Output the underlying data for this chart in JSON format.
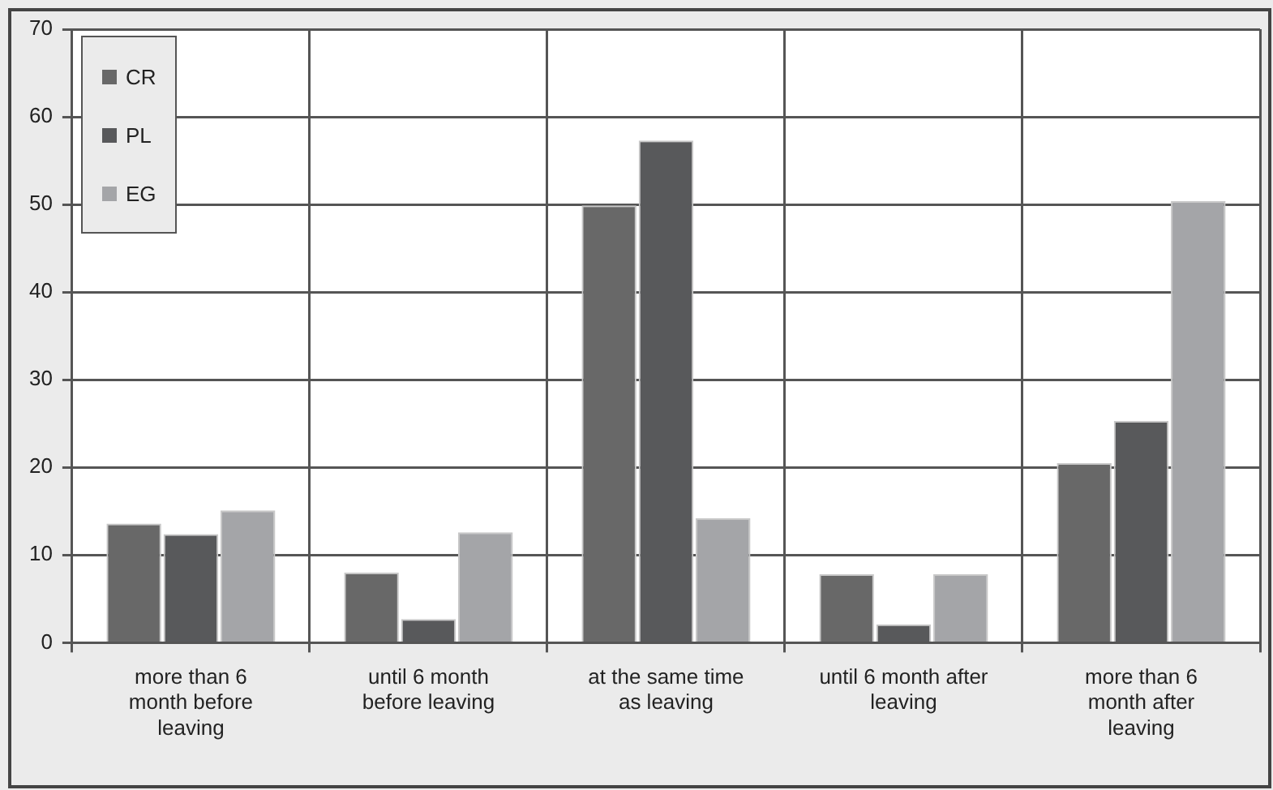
{
  "chart_data": {
    "type": "bar",
    "categories": [
      "more than 6\nmonth before\nleaving",
      "until 6 month\nbefore leaving",
      "at the same time\nas leaving",
      "until 6 month after\nleaving",
      "more than 6\nmonth after\nleaving"
    ],
    "series": [
      {
        "name": "CR",
        "color": "#686868",
        "values": [
          13.6,
          8.0,
          49.9,
          7.8,
          20.5
        ]
      },
      {
        "name": "PL",
        "color": "#58595b",
        "values": [
          12.4,
          2.7,
          57.3,
          2.1,
          25.3
        ]
      },
      {
        "name": "EG",
        "color": "#a4a5a8",
        "values": [
          15.1,
          12.6,
          14.2,
          7.8,
          50.4
        ]
      }
    ],
    "ylim": [
      0,
      70
    ],
    "yticks": [
      0,
      10,
      20,
      30,
      40,
      50,
      60,
      70
    ],
    "grid": true,
    "legend": "top left"
  }
}
